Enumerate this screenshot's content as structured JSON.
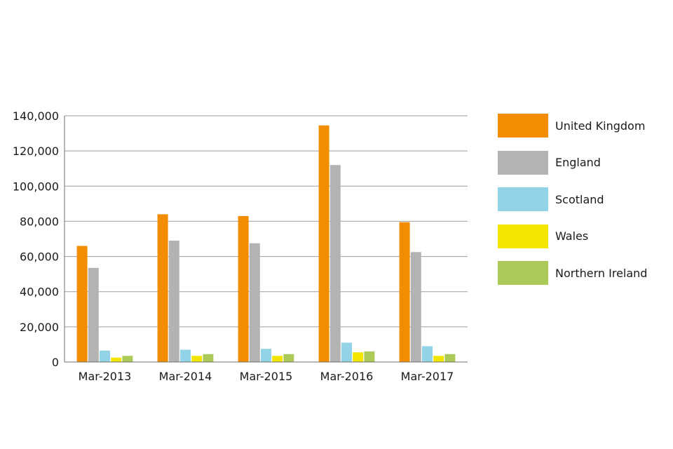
{
  "chart_data": {
    "type": "bar",
    "categories": [
      "Mar-2013",
      "Mar-2014",
      "Mar-2015",
      "Mar-2016",
      "Mar-2017"
    ],
    "series": [
      {
        "name": "United Kingdom",
        "color": "#f28c00",
        "values": [
          66000,
          84000,
          83000,
          134500,
          79500
        ]
      },
      {
        "name": "England",
        "color": "#b3b3b3",
        "values": [
          53500,
          69000,
          67500,
          112000,
          62500
        ]
      },
      {
        "name": "Scotland",
        "color": "#93d3e8",
        "values": [
          6500,
          7000,
          7500,
          11000,
          9000
        ]
      },
      {
        "name": "Wales",
        "color": "#f2e500",
        "values": [
          2500,
          3500,
          3500,
          5500,
          3500
        ]
      },
      {
        "name": "Northern Ireland",
        "color": "#acca57",
        "values": [
          3500,
          4500,
          4500,
          6000,
          4500
        ]
      }
    ],
    "yticks": [
      "0",
      "20,000",
      "40,000",
      "60,000",
      "80,000",
      "100,000",
      "120,000",
      "140,000"
    ],
    "ylim": [
      0,
      140000
    ],
    "grid": true,
    "legend_position": "right",
    "colors": {
      "gridline": "#9e9e9e",
      "axis": "#6f6f6f"
    }
  }
}
